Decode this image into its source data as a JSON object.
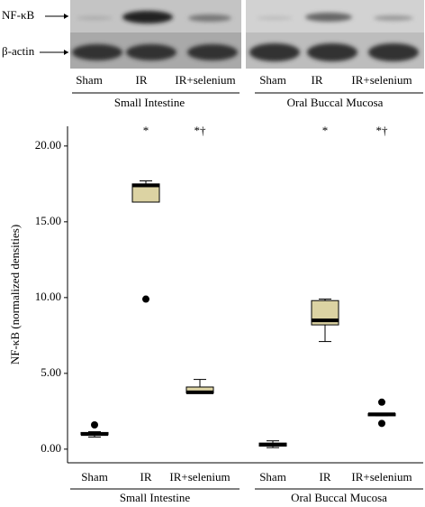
{
  "blot": {
    "row_labels": [
      "NF-κB",
      "β-actin"
    ],
    "lanes": [
      "Sham",
      "IR",
      "IR+selenium",
      "Sham",
      "IR",
      "IR+selenium"
    ],
    "groups": [
      "Small Intestine",
      "Oral Buccal Mucosa"
    ]
  },
  "chart_data": {
    "type": "box",
    "ylabel": "NF-κB (normalized densities)",
    "categories": [
      "Sham",
      "IR",
      "IR+selenium",
      "Sham",
      "IR",
      "IR+selenium"
    ],
    "groups": [
      "Small Intestine",
      "Oral Buccal Mucosa"
    ],
    "annotations": [
      null,
      "*",
      "*†",
      null,
      "*",
      "*†"
    ],
    "boxes": [
      {
        "min": 0.8,
        "q1": 0.95,
        "median": 1.0,
        "q3": 1.1,
        "max": 1.15,
        "outliers": [
          1.6
        ]
      },
      {
        "min": 16.3,
        "q1": 16.3,
        "median": 17.4,
        "q3": 17.5,
        "max": 17.7,
        "outliers": [
          9.9
        ]
      },
      {
        "min": 3.7,
        "q1": 3.7,
        "median": 3.75,
        "q3": 4.1,
        "max": 4.6,
        "outliers": []
      },
      {
        "min": 0.1,
        "q1": 0.2,
        "median": 0.3,
        "q3": 0.4,
        "max": 0.55,
        "outliers": []
      },
      {
        "min": 7.1,
        "q1": 8.2,
        "median": 8.5,
        "q3": 9.8,
        "max": 9.9,
        "outliers": []
      },
      {
        "min": 2.2,
        "q1": 2.2,
        "median": 2.3,
        "q3": 2.35,
        "max": 2.35,
        "outliers": [
          3.1,
          1.7
        ]
      }
    ],
    "color": "#dcd3a3",
    "ylim": [
      -0.9,
      21.3
    ],
    "yticks": [
      {
        "value": 0,
        "label": "0.00"
      },
      {
        "value": 5,
        "label": "5.00"
      },
      {
        "value": 10,
        "label": "10.00"
      },
      {
        "value": 15,
        "label": "15.00"
      },
      {
        "value": 20,
        "label": "20.00"
      }
    ]
  }
}
